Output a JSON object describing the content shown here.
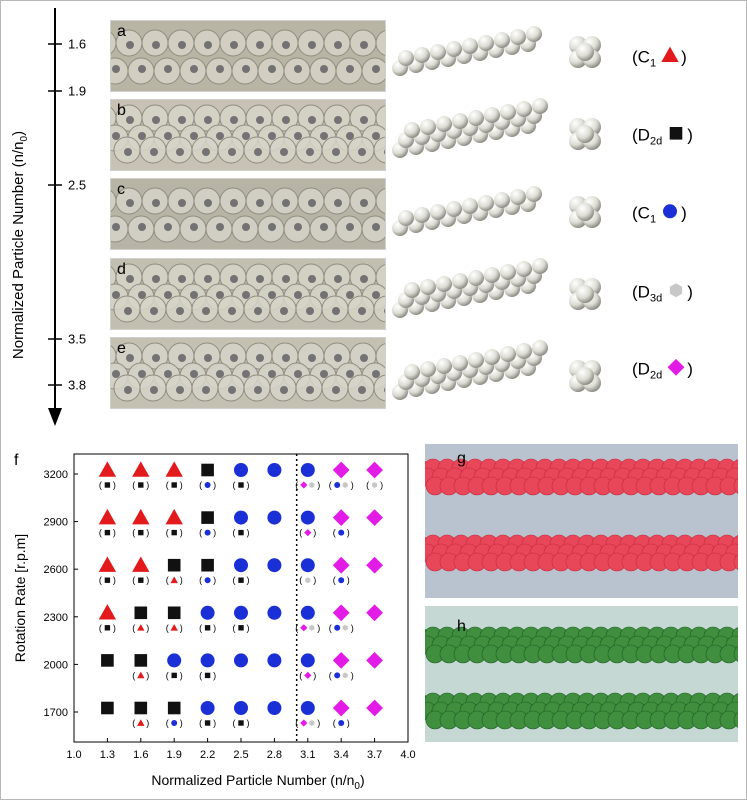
{
  "top_axis": {
    "title_main": "Normalized Particle Number (n/n",
    "title_sub": "0",
    "title_close": ")",
    "ticks": [
      "1.6",
      "1.9",
      "2.5",
      "3.5",
      "3.8"
    ]
  },
  "panels": [
    {
      "letter": "a",
      "sym": "C",
      "sub": "1",
      "marker": "triangle",
      "color": "#e31a1c"
    },
    {
      "letter": "b",
      "sym": "D",
      "sub": "2d",
      "marker": "square",
      "color": "#111111"
    },
    {
      "letter": "c",
      "sym": "C",
      "sub": "1",
      "marker": "circle",
      "color": "#1b2fd6"
    },
    {
      "letter": "d",
      "sym": "D",
      "sub": "3d",
      "marker": "hexagon",
      "color": "#c8c8c8"
    },
    {
      "letter": "e",
      "sym": "D",
      "sub": "2d",
      "marker": "diamond",
      "color": "#e21ce6"
    }
  ],
  "photo_letters": {
    "g": "g",
    "h": "h"
  },
  "plot_letter": "f",
  "chart_data": {
    "type": "scatter",
    "xlabel_main": "Normalized Particle Number (n/n",
    "xlabel_sub": "0",
    "xlabel_close": ")",
    "ylabel": "Rotation Rate [r.p.m]",
    "xlim": [
      1.0,
      4.0
    ],
    "x_ticks": [
      "1.0",
      "1.3",
      "1.6",
      "1.9",
      "2.2",
      "2.5",
      "2.8",
      "3.1",
      "3.4",
      "3.7",
      "4.0"
    ],
    "y_ticks": [
      "1700",
      "2000",
      "2300",
      "2600",
      "2900",
      "3200"
    ],
    "divider_x": 3.0,
    "marker_colors": {
      "triangle": "#e31a1c",
      "square": "#111111",
      "circle": "#1b2fd6",
      "hexagon": "#c8c8c8",
      "diamond": "#e21ce6"
    },
    "points": [
      {
        "x": 1.3,
        "y": 3200,
        "main": "triangle",
        "sub": [
          "square"
        ]
      },
      {
        "x": 1.6,
        "y": 3200,
        "main": "triangle",
        "sub": [
          "square"
        ]
      },
      {
        "x": 1.9,
        "y": 3200,
        "main": "triangle",
        "sub": [
          "square"
        ]
      },
      {
        "x": 2.2,
        "y": 3200,
        "main": "square",
        "sub": [
          "circle"
        ]
      },
      {
        "x": 2.5,
        "y": 3200,
        "main": "circle",
        "sub": [
          "square"
        ]
      },
      {
        "x": 2.8,
        "y": 3200,
        "main": "circle",
        "sub": []
      },
      {
        "x": 3.1,
        "y": 3200,
        "main": "circle",
        "sub": [
          "diamond",
          "hexagon"
        ]
      },
      {
        "x": 3.4,
        "y": 3200,
        "main": "diamond",
        "sub": [
          "circle",
          "hexagon"
        ]
      },
      {
        "x": 3.7,
        "y": 3200,
        "main": "diamond",
        "sub": [
          "hexagon"
        ]
      },
      {
        "x": 1.3,
        "y": 2900,
        "main": "triangle",
        "sub": [
          "square"
        ]
      },
      {
        "x": 1.6,
        "y": 2900,
        "main": "triangle",
        "sub": [
          "square"
        ]
      },
      {
        "x": 1.9,
        "y": 2900,
        "main": "triangle",
        "sub": [
          "square"
        ]
      },
      {
        "x": 2.2,
        "y": 2900,
        "main": "square",
        "sub": [
          "circle"
        ]
      },
      {
        "x": 2.5,
        "y": 2900,
        "main": "circle",
        "sub": [
          "square"
        ]
      },
      {
        "x": 2.8,
        "y": 2900,
        "main": "circle",
        "sub": []
      },
      {
        "x": 3.1,
        "y": 2900,
        "main": "circle",
        "sub": [
          "diamond"
        ]
      },
      {
        "x": 3.4,
        "y": 2900,
        "main": "diamond",
        "sub": [
          "circle"
        ]
      },
      {
        "x": 3.7,
        "y": 2900,
        "main": "diamond",
        "sub": []
      },
      {
        "x": 1.3,
        "y": 2600,
        "main": "triangle",
        "sub": [
          "square"
        ]
      },
      {
        "x": 1.6,
        "y": 2600,
        "main": "triangle",
        "sub": [
          "square"
        ]
      },
      {
        "x": 1.9,
        "y": 2600,
        "main": "square",
        "sub": [
          "triangle"
        ]
      },
      {
        "x": 2.2,
        "y": 2600,
        "main": "square",
        "sub": [
          "circle"
        ]
      },
      {
        "x": 2.5,
        "y": 2600,
        "main": "circle",
        "sub": [
          "square"
        ]
      },
      {
        "x": 2.8,
        "y": 2600,
        "main": "circle",
        "sub": []
      },
      {
        "x": 3.1,
        "y": 2600,
        "main": "circle",
        "sub": [
          "hexagon"
        ]
      },
      {
        "x": 3.4,
        "y": 2600,
        "main": "diamond",
        "sub": [
          "circle"
        ]
      },
      {
        "x": 3.7,
        "y": 2600,
        "main": "diamond",
        "sub": []
      },
      {
        "x": 1.3,
        "y": 2300,
        "main": "triangle",
        "sub": [
          "square"
        ]
      },
      {
        "x": 1.6,
        "y": 2300,
        "main": "square",
        "sub": [
          "triangle"
        ]
      },
      {
        "x": 1.9,
        "y": 2300,
        "main": "square",
        "sub": [
          "triangle"
        ]
      },
      {
        "x": 2.2,
        "y": 2300,
        "main": "circle",
        "sub": [
          "square"
        ]
      },
      {
        "x": 2.5,
        "y": 2300,
        "main": "circle",
        "sub": [
          "square"
        ]
      },
      {
        "x": 2.8,
        "y": 2300,
        "main": "circle",
        "sub": []
      },
      {
        "x": 3.1,
        "y": 2300,
        "main": "circle",
        "sub": [
          "diamond",
          "hexagon"
        ]
      },
      {
        "x": 3.4,
        "y": 2300,
        "main": "diamond",
        "sub": [
          "circle",
          "hexagon"
        ]
      },
      {
        "x": 3.7,
        "y": 2300,
        "main": "diamond",
        "sub": []
      },
      {
        "x": 1.3,
        "y": 2000,
        "main": "square",
        "sub": []
      },
      {
        "x": 1.6,
        "y": 2000,
        "main": "square",
        "sub": [
          "triangle"
        ]
      },
      {
        "x": 1.9,
        "y": 2000,
        "main": "circle",
        "sub": [
          "square"
        ]
      },
      {
        "x": 2.2,
        "y": 2000,
        "main": "circle",
        "sub": [
          "square"
        ]
      },
      {
        "x": 2.5,
        "y": 2000,
        "main": "circle",
        "sub": []
      },
      {
        "x": 2.8,
        "y": 2000,
        "main": "circle",
        "sub": []
      },
      {
        "x": 3.1,
        "y": 2000,
        "main": "circle",
        "sub": [
          "diamond"
        ]
      },
      {
        "x": 3.4,
        "y": 2000,
        "main": "diamond",
        "sub": [
          "circle",
          "hexagon"
        ]
      },
      {
        "x": 3.7,
        "y": 2000,
        "main": "diamond",
        "sub": []
      },
      {
        "x": 1.3,
        "y": 1700,
        "main": "square",
        "sub": []
      },
      {
        "x": 1.6,
        "y": 1700,
        "main": "square",
        "sub": [
          "triangle"
        ]
      },
      {
        "x": 1.9,
        "y": 1700,
        "main": "square",
        "sub": [
          "circle"
        ]
      },
      {
        "x": 2.2,
        "y": 1700,
        "main": "circle",
        "sub": [
          "square"
        ]
      },
      {
        "x": 2.5,
        "y": 1700,
        "main": "circle",
        "sub": [
          "square"
        ]
      },
      {
        "x": 2.8,
        "y": 1700,
        "main": "circle",
        "sub": []
      },
      {
        "x": 3.1,
        "y": 1700,
        "main": "circle",
        "sub": [
          "diamond",
          "hexagon"
        ]
      },
      {
        "x": 3.4,
        "y": 1700,
        "main": "diamond",
        "sub": [
          "circle"
        ]
      },
      {
        "x": 3.7,
        "y": 1700,
        "main": "diamond",
        "sub": []
      }
    ]
  }
}
